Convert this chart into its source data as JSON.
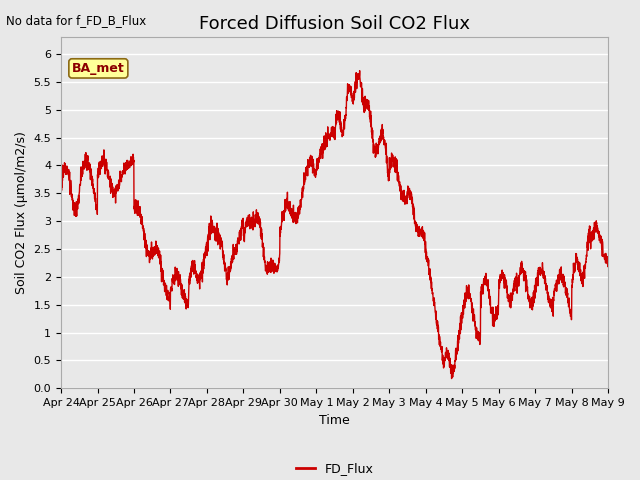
{
  "title": "Forced Diffusion Soil CO2 Flux",
  "ylabel": "Soil CO2 Flux (µmol/m2/s)",
  "xlabel": "Time",
  "no_data_text": "No data for f_FD_B_Flux",
  "legend_label": "FD_Flux",
  "ba_met_label": "BA_met",
  "ylim": [
    0.0,
    6.3
  ],
  "yticks": [
    0.0,
    0.5,
    1.0,
    1.5,
    2.0,
    2.5,
    3.0,
    3.5,
    4.0,
    4.5,
    5.0,
    5.5,
    6.0
  ],
  "line_color": "#cc0000",
  "legend_line_color": "#cc0000",
  "bg_color": "#e8e8e8",
  "plot_bg_color": "#e8e8e8",
  "ba_met_bg": "#ffff99",
  "ba_met_border": "#8b6914",
  "title_fontsize": 13,
  "label_fontsize": 9,
  "tick_fontsize": 8,
  "xtick_labels": [
    "Apr 24",
    "Apr 25",
    "Apr 26",
    "Apr 27",
    "Apr 28",
    "Apr 29",
    "Apr 30",
    "May 1",
    "May 2",
    "May 3",
    "May 4",
    "May 5",
    "May 6",
    "May 7",
    "May 8",
    "May 9"
  ],
  "line_width": 1.0
}
